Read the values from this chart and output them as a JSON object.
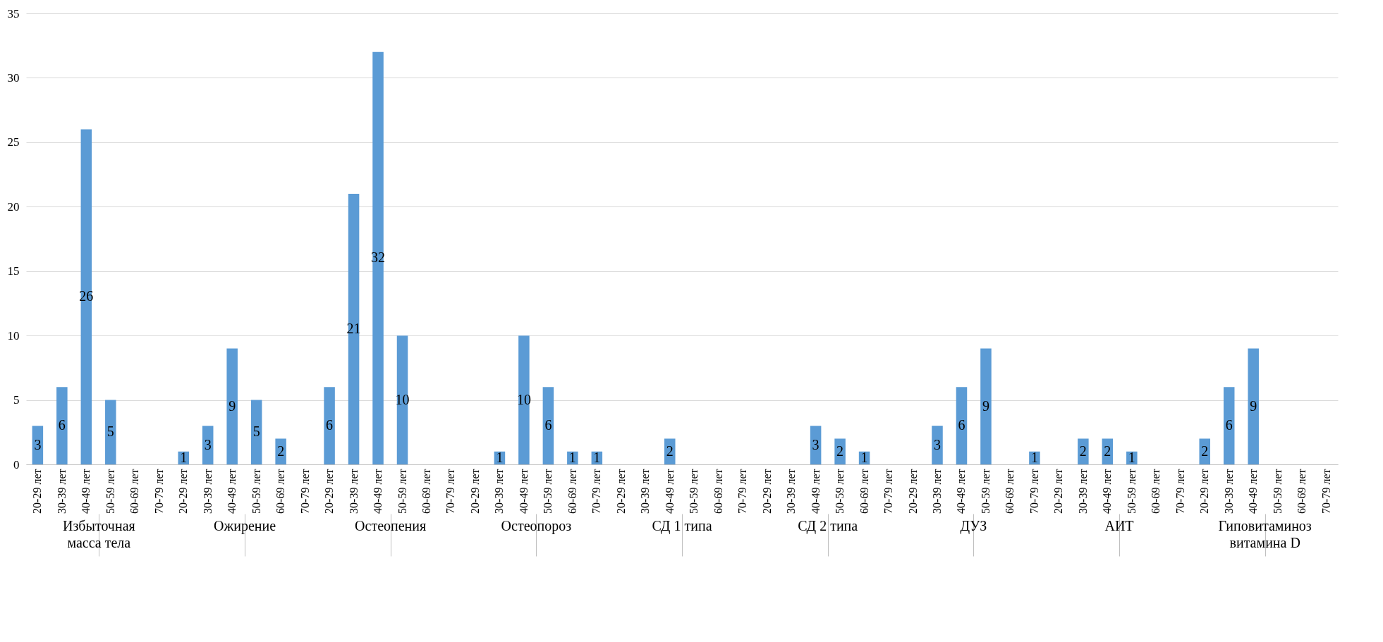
{
  "chart_data": {
    "type": "bar",
    "categories": [
      "20-29 лет",
      "30-39 лет",
      "40-49 лет",
      "50-59 лет",
      "60-69 лет",
      "70-79 лет",
      "20-29 лет",
      "30-39 лет",
      "40-49 лет",
      "50-59 лет",
      "60-69 лет",
      "70-79 лет",
      "20-29 лет",
      "30-39 лет",
      "40-49 лет",
      "50-59 лет",
      "60-69 лет",
      "70-79 лет",
      "20-29 лет",
      "30-39 лет",
      "40-49 лет",
      "50-59 лет",
      "60-69 лет",
      "70-79 лет",
      "20-29 лет",
      "30-39 лет",
      "40-49 лет",
      "50-59 лет",
      "60-69 лет",
      "70-79 лет",
      "20-29 лет",
      "30-39 лет",
      "40-49 лет",
      "50-59 лет",
      "60-69 лет",
      "70-79 лет",
      "20-29 лет",
      "30-39 лет",
      "40-49 лет",
      "50-59 лет",
      "60-69 лет",
      "70-79 лет",
      "20-29 лет",
      "30-39 лет",
      "40-49 лет",
      "50-59 лет",
      "60-69 лет",
      "70-79 лет",
      "20-29 лет",
      "30-39 лет",
      "40-49 лет",
      "50-59 лет",
      "60-69 лет",
      "70-79 лет"
    ],
    "values": [
      3,
      6,
      26,
      5,
      0,
      0,
      1,
      3,
      9,
      5,
      2,
      0,
      6,
      21,
      32,
      10,
      0,
      0,
      0,
      1,
      10,
      6,
      1,
      1,
      0,
      0,
      2,
      0,
      0,
      0,
      0,
      0,
      3,
      2,
      1,
      0,
      0,
      3,
      6,
      9,
      0,
      1,
      0,
      2,
      2,
      1,
      0,
      0,
      2,
      6,
      9,
      0,
      0,
      0
    ],
    "value_labels": [
      "3",
      "6",
      "26",
      "5",
      null,
      null,
      "1",
      "3",
      "9",
      "5",
      "2",
      null,
      "6",
      "21",
      "32",
      "10",
      null,
      null,
      null,
      "1",
      "10",
      "6",
      "1",
      "1",
      null,
      null,
      "2",
      null,
      null,
      null,
      null,
      null,
      "3",
      "2",
      "1",
      null,
      null,
      "3",
      "6",
      "9",
      null,
      "1",
      null,
      "2",
      "2",
      "1",
      null,
      null,
      "2",
      "6",
      "9",
      null,
      null,
      null
    ],
    "color": "#5b9bd5",
    "ylim": [
      0,
      35
    ],
    "yticks": [
      0,
      5,
      10,
      15,
      20,
      25,
      30,
      35
    ],
    "grid": "y",
    "annotations": [
      "Избыточная масса тела",
      "Ожирение",
      "Остеопения",
      "Остеопороз",
      "СД 1 типа",
      "СД 2 типа",
      "ДУЗ",
      "АИТ",
      "Гиповитаминоз витамина D"
    ]
  }
}
